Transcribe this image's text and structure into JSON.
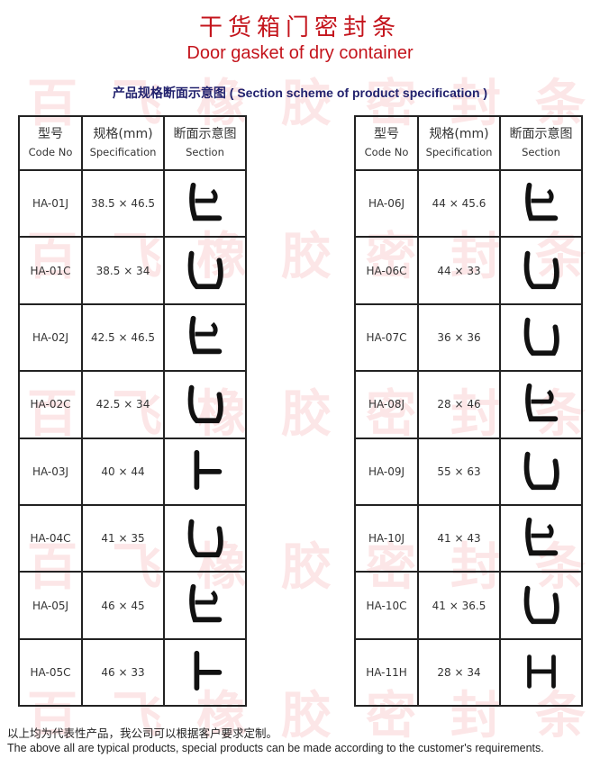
{
  "title_cn": "干货箱门密封条",
  "title_en": "Door gasket of  dry container",
  "subtitle": "产品规格断面示意图 ( Section scheme of product specification )",
  "watermark": [
    "百",
    "飞",
    "橡",
    "胶",
    "密",
    "封",
    "条"
  ],
  "headers": {
    "code_cn": "型号",
    "code_en": "Code No",
    "spec_cn": "规格(mm)",
    "spec_en": "Specification",
    "section_cn": "断面示意图",
    "section_en": "Section"
  },
  "left_rows": [
    {
      "code": "HA-01J",
      "spec": "38.5 × 46.5",
      "shape": "j"
    },
    {
      "code": "HA-01C",
      "spec": "38.5 × 34",
      "shape": "c"
    },
    {
      "code": "HA-02J",
      "spec": "42.5 × 46.5",
      "shape": "j"
    },
    {
      "code": "HA-02C",
      "spec": "42.5 × 34",
      "shape": "c"
    },
    {
      "code": "HA-03J",
      "spec": "40 × 44",
      "shape": "t"
    },
    {
      "code": "HA-04C",
      "spec": "41 × 35",
      "shape": "c"
    },
    {
      "code": "HA-05J",
      "spec": "46 × 45",
      "shape": "j"
    },
    {
      "code": "HA-05C",
      "spec": "46 × 33",
      "shape": "t"
    }
  ],
  "right_rows": [
    {
      "code": "HA-06J",
      "spec": "44 × 45.6",
      "shape": "j"
    },
    {
      "code": "HA-06C",
      "spec": "44 × 33",
      "shape": "c"
    },
    {
      "code": "HA-07C",
      "spec": "36 × 36",
      "shape": "c"
    },
    {
      "code": "HA-08J",
      "spec": "28 × 46",
      "shape": "j"
    },
    {
      "code": "HA-09J",
      "spec": "55 × 63",
      "shape": "c"
    },
    {
      "code": "HA-10J",
      "spec": "41 × 43",
      "shape": "j"
    },
    {
      "code": "HA-10C",
      "spec": "41 × 36.5",
      "shape": "c"
    },
    {
      "code": "HA-11H",
      "spec": "28 × 34",
      "shape": "h"
    }
  ],
  "footer_cn": "以上均为代表性产品，我公司可以根据客户要求定制。",
  "footer_en": "The above all are typical products, special products can be made according to the customer's requirements."
}
